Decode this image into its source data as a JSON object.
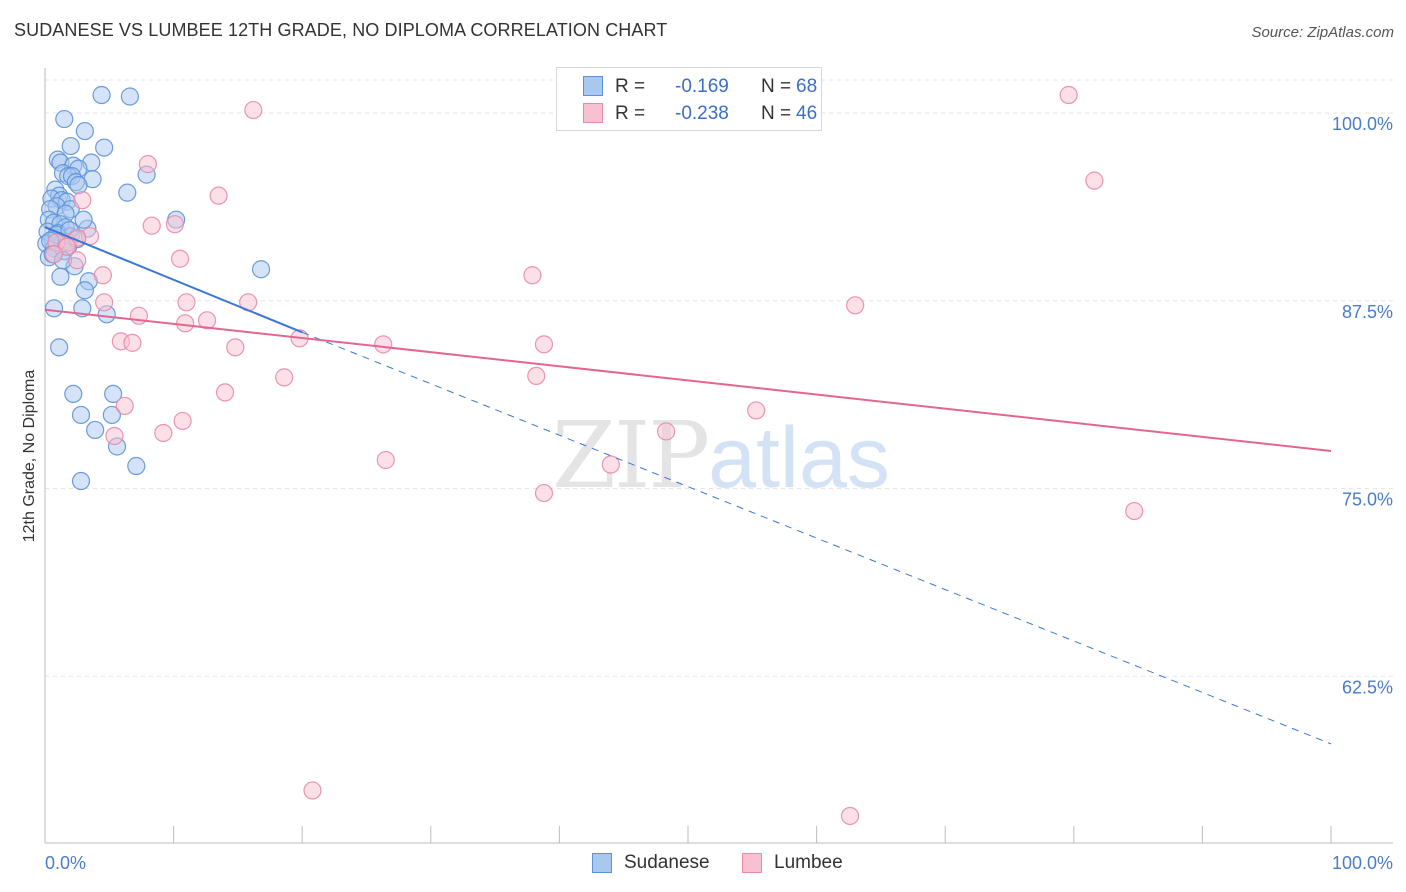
{
  "title": "SUDANESE VS LUMBEE 12TH GRADE, NO DIPLOMA CORRELATION CHART",
  "source": "Source: ZipAtlas.com",
  "watermark": {
    "zip": "ZIP",
    "atlas": "atlas"
  },
  "legend": {
    "sudanese": {
      "r_label": "R =",
      "r_value": "-0.169",
      "n_label": "N =",
      "n_value": "68"
    },
    "lumbee": {
      "r_label": "R =",
      "r_value": "-0.238",
      "n_label": "N =",
      "n_value": "46"
    }
  },
  "bottom_legend": {
    "sudanese": "Sudanese",
    "lumbee": "Lumbee"
  },
  "colors": {
    "sudanese_fill": "#a9c8f0",
    "sudanese_stroke": "#5d92d8",
    "sudanese_line": "#3a78d4",
    "lumbee_fill": "#f7c1d2",
    "lumbee_stroke": "#e98aa9",
    "lumbee_line": "#e36590",
    "tick_text": "#4a7cc9",
    "grid": "#e6e6e6"
  },
  "chart_data": {
    "type": "scatter",
    "title": "SUDANESE VS LUMBEE 12TH GRADE, NO DIPLOMA CORRELATION CHART",
    "xlabel": "",
    "ylabel": "12th Grade, No Diploma",
    "xlim": [
      0,
      100
    ],
    "ylim": [
      51.4,
      102.2
    ],
    "x_tick_labels": [
      "0.0%",
      "100.0%"
    ],
    "y_ticks": [
      62.5,
      75.0,
      87.5,
      100.0
    ],
    "y_tick_labels": [
      "62.5%",
      "75.0%",
      "87.5%",
      "100.0%"
    ],
    "grid": true,
    "series": [
      {
        "name": "Sudanese",
        "points": [
          [
            4.4,
            101.2
          ],
          [
            6.6,
            101.1
          ],
          [
            1.5,
            99.6
          ],
          [
            3.1,
            98.8
          ],
          [
            2.0,
            97.8
          ],
          [
            4.6,
            97.7
          ],
          [
            1.0,
            96.9
          ],
          [
            1.2,
            96.7
          ],
          [
            3.6,
            96.7
          ],
          [
            2.2,
            96.5
          ],
          [
            2.6,
            96.3
          ],
          [
            1.4,
            96.0
          ],
          [
            1.8,
            95.8
          ],
          [
            2.1,
            95.8
          ],
          [
            7.9,
            95.9
          ],
          [
            2.4,
            95.4
          ],
          [
            3.7,
            95.6
          ],
          [
            2.6,
            95.2
          ],
          [
            0.8,
            94.9
          ],
          [
            1.1,
            94.5
          ],
          [
            6.4,
            94.7
          ],
          [
            0.5,
            94.3
          ],
          [
            1.3,
            94.2
          ],
          [
            1.7,
            94.1
          ],
          [
            0.9,
            93.8
          ],
          [
            2.0,
            93.6
          ],
          [
            0.4,
            93.6
          ],
          [
            1.6,
            93.3
          ],
          [
            10.2,
            92.9
          ],
          [
            0.3,
            92.9
          ],
          [
            0.7,
            92.7
          ],
          [
            1.2,
            92.6
          ],
          [
            1.6,
            92.4
          ],
          [
            3.3,
            92.3
          ],
          [
            0.2,
            92.1
          ],
          [
            1.0,
            92.0
          ],
          [
            2.0,
            91.8
          ],
          [
            0.6,
            91.6
          ],
          [
            1.3,
            91.3
          ],
          [
            0.1,
            91.3
          ],
          [
            0.7,
            91.0
          ],
          [
            1.5,
            90.8
          ],
          [
            0.3,
            90.4
          ],
          [
            2.3,
            89.8
          ],
          [
            16.8,
            89.6
          ],
          [
            1.2,
            89.1
          ],
          [
            3.4,
            88.8
          ],
          [
            3.1,
            88.2
          ],
          [
            0.7,
            87.0
          ],
          [
            2.9,
            87.0
          ],
          [
            4.8,
            86.6
          ],
          [
            1.1,
            84.4
          ],
          [
            2.2,
            81.3
          ],
          [
            5.3,
            81.3
          ],
          [
            2.8,
            79.9
          ],
          [
            5.2,
            79.9
          ],
          [
            3.9,
            78.9
          ],
          [
            5.6,
            77.8
          ],
          [
            7.1,
            76.5
          ],
          [
            2.8,
            75.5
          ],
          [
            0.9,
            91.9
          ],
          [
            1.9,
            92.2
          ],
          [
            0.4,
            91.5
          ],
          [
            1.8,
            91.1
          ],
          [
            0.6,
            90.6
          ],
          [
            1.4,
            90.2
          ],
          [
            2.5,
            91.6
          ],
          [
            3.0,
            92.9
          ]
        ]
      },
      {
        "name": "Lumbee",
        "points": [
          [
            16.2,
            100.2
          ],
          [
            79.6,
            101.2
          ],
          [
            8.0,
            96.6
          ],
          [
            81.6,
            95.5
          ],
          [
            13.5,
            94.5
          ],
          [
            2.9,
            94.2
          ],
          [
            8.3,
            92.5
          ],
          [
            10.1,
            92.6
          ],
          [
            3.5,
            91.8
          ],
          [
            1.8,
            91.4
          ],
          [
            2.5,
            91.7
          ],
          [
            0.9,
            91.4
          ],
          [
            1.7,
            91.1
          ],
          [
            10.5,
            90.3
          ],
          [
            2.5,
            90.2
          ],
          [
            0.7,
            90.6
          ],
          [
            37.9,
            89.2
          ],
          [
            4.5,
            89.2
          ],
          [
            63.0,
            87.2
          ],
          [
            11.0,
            87.4
          ],
          [
            15.8,
            87.4
          ],
          [
            4.6,
            87.4
          ],
          [
            7.3,
            86.5
          ],
          [
            12.6,
            86.2
          ],
          [
            10.9,
            86.0
          ],
          [
            5.9,
            84.8
          ],
          [
            6.8,
            84.7
          ],
          [
            19.8,
            85.0
          ],
          [
            26.3,
            84.6
          ],
          [
            14.8,
            84.4
          ],
          [
            38.8,
            84.6
          ],
          [
            38.2,
            82.5
          ],
          [
            18.6,
            82.4
          ],
          [
            14.0,
            81.4
          ],
          [
            6.2,
            80.5
          ],
          [
            55.3,
            80.2
          ],
          [
            10.7,
            79.5
          ],
          [
            9.2,
            78.7
          ],
          [
            48.3,
            78.8
          ],
          [
            5.4,
            78.5
          ],
          [
            26.5,
            76.9
          ],
          [
            44.0,
            76.6
          ],
          [
            38.8,
            74.7
          ],
          [
            84.7,
            73.5
          ],
          [
            20.8,
            54.9
          ],
          [
            62.6,
            53.2
          ]
        ]
      }
    ],
    "trend_lines": [
      {
        "series": "Sudanese",
        "style": "solid",
        "from": [
          0,
          92.4
        ],
        "to": [
          20,
          85.4
        ]
      },
      {
        "series": "Sudanese",
        "style": "dashed",
        "from": [
          20,
          85.4
        ],
        "to": [
          100,
          58.0
        ]
      },
      {
        "series": "Lumbee",
        "style": "solid",
        "from": [
          0,
          86.9
        ],
        "to": [
          100,
          77.5
        ]
      }
    ]
  }
}
